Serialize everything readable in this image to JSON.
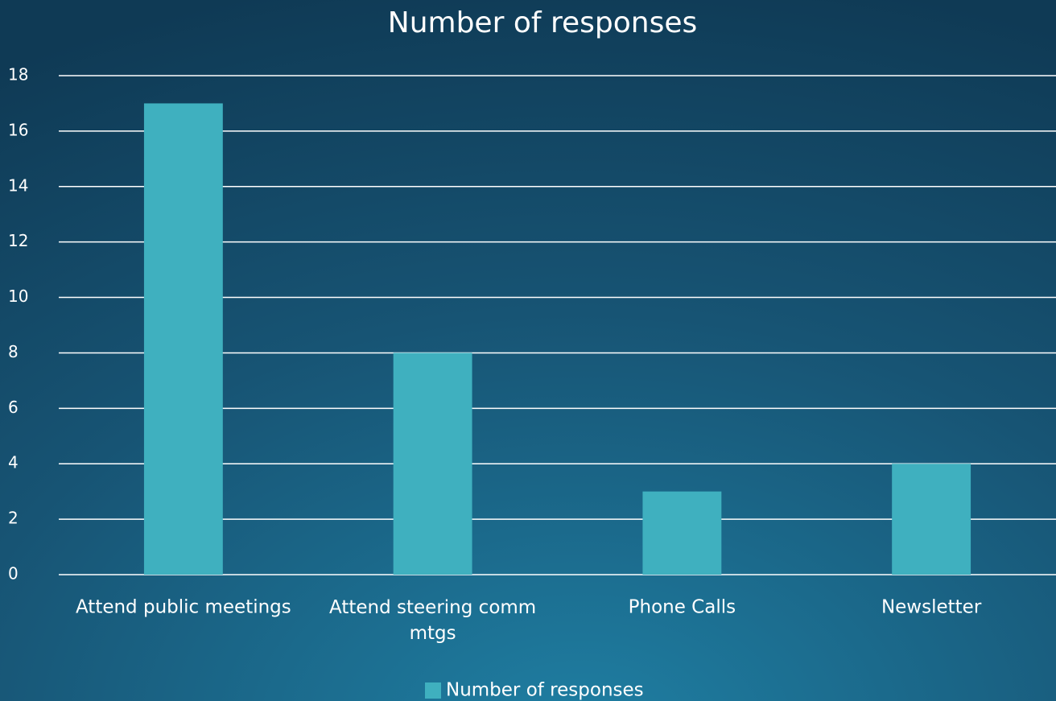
{
  "chart_data": {
    "type": "bar",
    "title": "Number of responses",
    "categories": [
      "Attend public meetings",
      "Attend steering comm mtgs",
      "Phone Calls",
      "Newsletter"
    ],
    "series": [
      {
        "name": "Number of responses",
        "color": "#3fb0bf",
        "values": [
          17,
          8,
          3,
          4
        ]
      }
    ],
    "ylim": [
      0,
      18
    ],
    "yticks": [
      0,
      2,
      4,
      6,
      8,
      10,
      12,
      14,
      16,
      18
    ],
    "grid": true,
    "legend": "bottom"
  }
}
